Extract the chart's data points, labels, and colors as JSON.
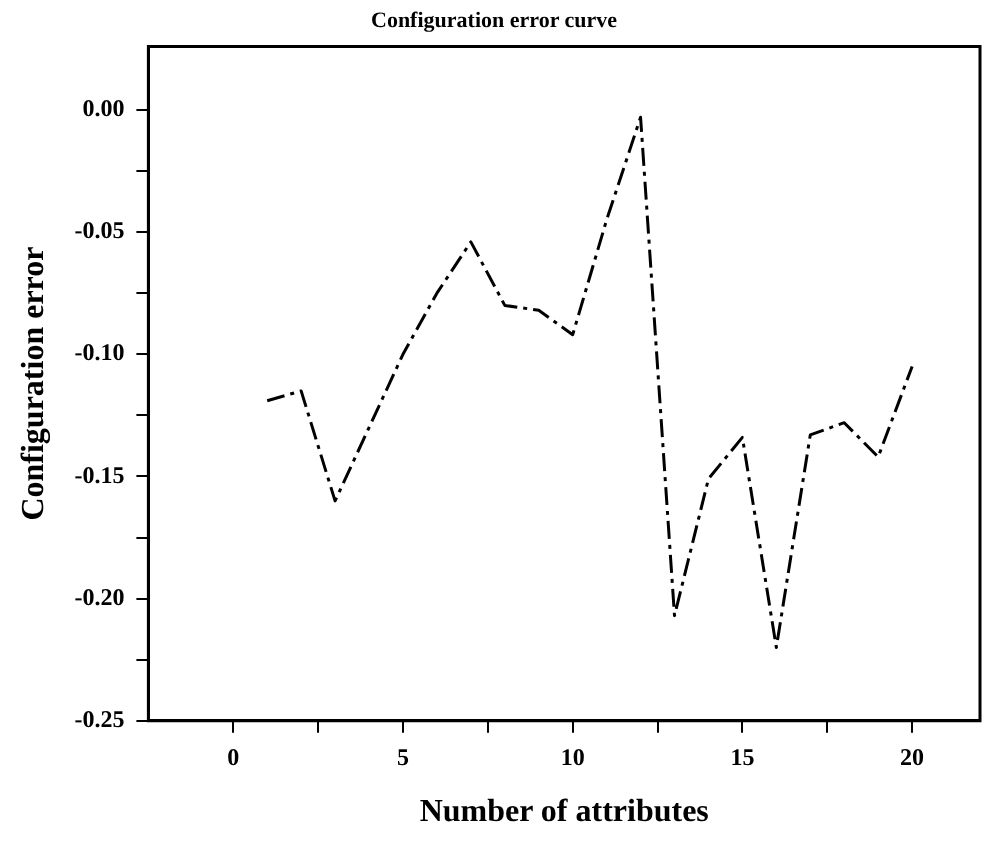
{
  "chart_data": {
    "type": "line",
    "title": "Configuration error curve",
    "xlabel": "Number of attributes",
    "ylabel": "Configuration error",
    "x": [
      1,
      2,
      3,
      4,
      5,
      6,
      7,
      8,
      9,
      10,
      11,
      12,
      13,
      14,
      15,
      16,
      17,
      18,
      19,
      20
    ],
    "series": [
      {
        "color": "#000000",
        "values": [
          -0.119,
          -0.115,
          -0.16,
          -0.13,
          -0.1,
          -0.075,
          -0.054,
          -0.08,
          -0.082,
          -0.092,
          -0.045,
          -0.003,
          -0.207,
          -0.151,
          -0.134,
          -0.22,
          -0.133,
          -0.128,
          -0.142,
          -0.105
        ]
      }
    ],
    "xlim": [
      -2.5,
      22
    ],
    "ylim": [
      -0.25,
      0.026
    ],
    "xticks": [
      0,
      {
        "value": 2.5,
        "label": null
      },
      5,
      {
        "value": 7.5,
        "label": null
      },
      10,
      {
        "value": 12.5,
        "label": null
      },
      15,
      {
        "value": 17.5,
        "label": null
      },
      20
    ],
    "yticks": [
      -0.25,
      {
        "value": -0.225,
        "label": null
      },
      {
        "value": -0.2,
        "label": "-0.20"
      },
      {
        "value": -0.175,
        "label": null
      },
      -0.15,
      {
        "value": -0.125,
        "label": null
      },
      {
        "value": -0.1,
        "label": "-0.10"
      },
      {
        "value": -0.075,
        "label": null
      },
      -0.05,
      {
        "value": -0.025,
        "label": null
      },
      {
        "value": 0,
        "label": "0.00"
      }
    ],
    "grid": false,
    "legend": false,
    "marker": "none",
    "line_style": "dashed"
  }
}
